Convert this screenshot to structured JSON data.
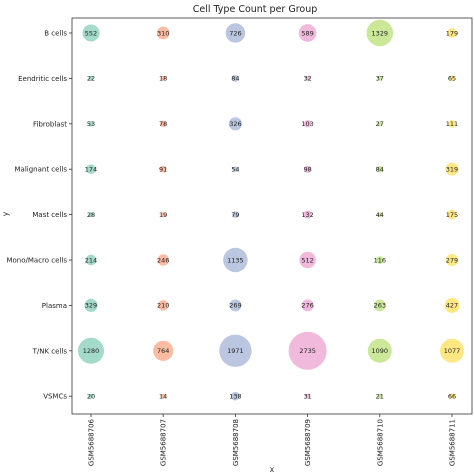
{
  "chart_data": {
    "type": "scatter",
    "title": "Cell Type Count per Group",
    "xlabel": "x",
    "ylabel": "y",
    "categories_x": [
      "GSM5688706",
      "GSM5688707",
      "GSM5688708",
      "GSM5688709",
      "GSM5688710",
      "GSM5688711"
    ],
    "categories_y": [
      "B cells",
      "Eendritic cells",
      "Fibroblast",
      "Malignant cells",
      "Mast cells",
      "Mono/Macro cells",
      "Plasma",
      "T/NK cells",
      "VSMCs"
    ],
    "grid": false,
    "series_colors": [
      "#66c2a5",
      "#fc8d62",
      "#8da0cb",
      "#e78ac3",
      "#a6d854",
      "#ffd92f"
    ],
    "values": [
      [
        552,
        310,
        726,
        589,
        1329,
        179
      ],
      [
        22,
        18,
        84,
        32,
        37,
        65
      ],
      [
        53,
        78,
        326,
        103,
        27,
        111
      ],
      [
        174,
        91,
        54,
        98,
        84,
        319
      ],
      [
        28,
        19,
        79,
        132,
        44,
        175
      ],
      [
        214,
        246,
        1135,
        512,
        116,
        279
      ],
      [
        329,
        210,
        269,
        276,
        263,
        427
      ],
      [
        1280,
        764,
        1971,
        2735,
        1090,
        1077
      ],
      [
        20,
        14,
        138,
        31,
        21,
        66
      ]
    ]
  }
}
